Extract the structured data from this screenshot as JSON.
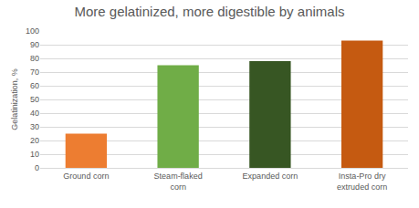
{
  "chart_data": {
    "type": "bar",
    "title": "More gelatinized, more digestible by animals",
    "y_label": "Gelatinization, %",
    "categories": [
      "Ground corn",
      "Steam-flaked corn",
      "Expanded corn",
      "Insta-Pro dry extruded corn"
    ],
    "values": [
      25,
      75,
      78,
      93
    ],
    "colors": [
      "#ed7d31",
      "#70ad47",
      "#375623",
      "#c55a11"
    ],
    "ylim": [
      0,
      100
    ],
    "yticks": [
      0,
      10,
      20,
      30,
      40,
      50,
      60,
      70,
      80,
      90,
      100
    ],
    "grid": true
  }
}
